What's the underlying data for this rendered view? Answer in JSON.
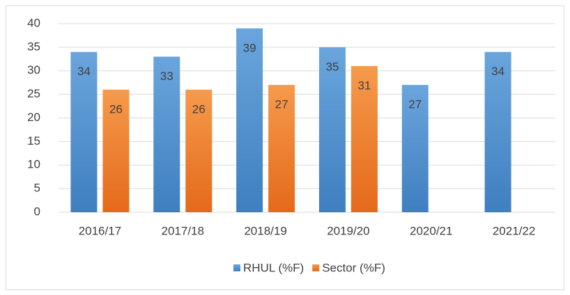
{
  "chart_data": {
    "type": "bar",
    "categories": [
      "2016/17",
      "2017/18",
      "2018/19",
      "2019/20",
      "2020/21",
      "2021/22"
    ],
    "series": [
      {
        "name": "RHUL (%F)",
        "color": "#5b9bd5",
        "values": [
          34,
          33,
          39,
          35,
          27,
          34
        ]
      },
      {
        "name": "Sector (%F)",
        "color": "#ed7d31",
        "values": [
          26,
          26,
          27,
          31,
          null,
          null
        ]
      }
    ],
    "ylim": [
      0,
      40
    ],
    "yticks": [
      0,
      5,
      10,
      15,
      20,
      25,
      30,
      35,
      40
    ],
    "grid": true,
    "legend": "bottom"
  }
}
